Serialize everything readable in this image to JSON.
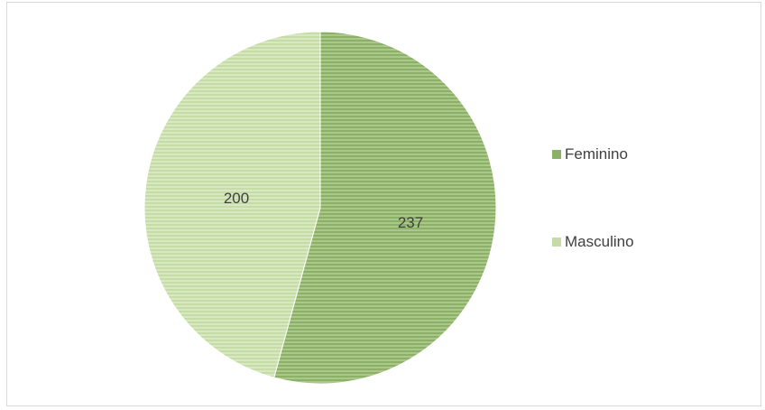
{
  "chart_data": {
    "type": "pie",
    "categories": [
      "Feminino",
      "Masculino"
    ],
    "values": [
      237,
      200
    ],
    "colors": [
      "#8cb067",
      "#c5dca7"
    ],
    "stripe_colors": [
      "#a9c88a",
      "#d8e8c2"
    ],
    "data_labels": [
      "237",
      "200"
    ],
    "legend": {
      "position": "right",
      "entries": [
        "Feminino",
        "Masculino"
      ]
    },
    "start_angle": "top",
    "direction": "clockwise"
  }
}
